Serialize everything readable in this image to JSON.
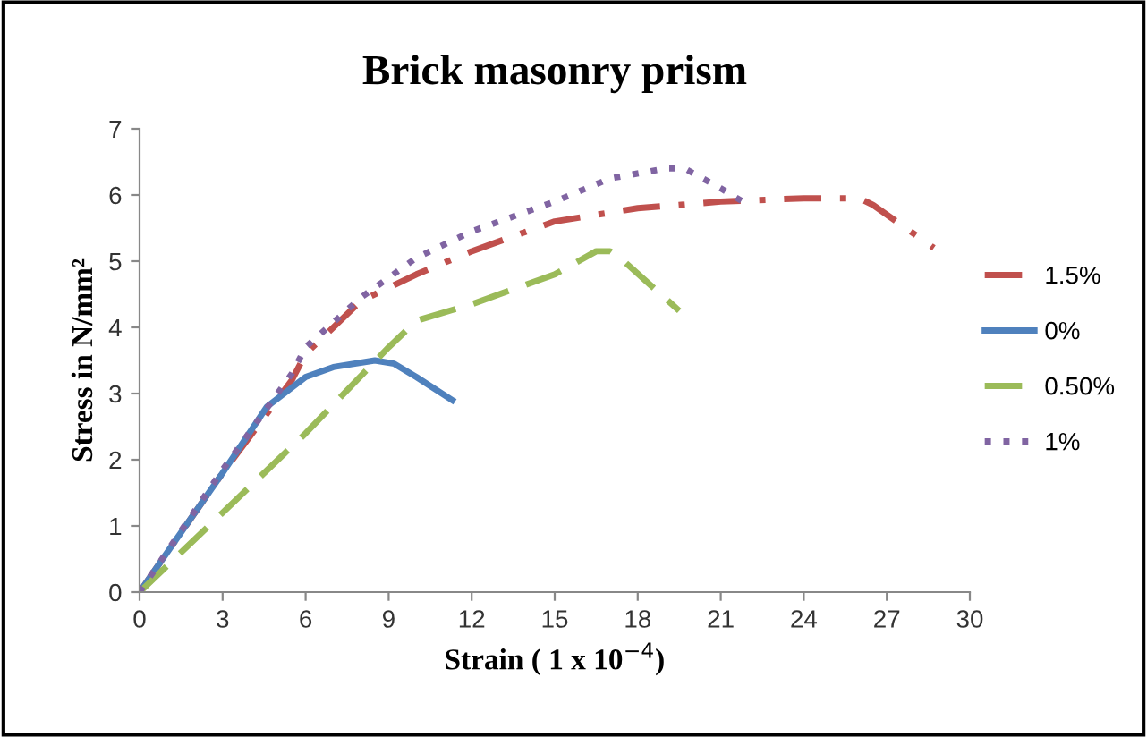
{
  "chart_data": {
    "type": "line",
    "title": "Brick masonry prism",
    "xlabel": "Strain ( 1 x 10$^{−4}$)",
    "ylabel": "Stress in N/mm²",
    "xlim": [
      0,
      30
    ],
    "xticks": [
      0,
      3,
      6,
      9,
      12,
      15,
      18,
      21,
      24,
      27,
      30
    ],
    "ylim": [
      0,
      7
    ],
    "yticks": [
      0,
      1,
      2,
      3,
      4,
      5,
      6,
      7
    ],
    "grid": false,
    "legend": "right",
    "marker": "none",
    "series": [
      {
        "name": "1.5%",
        "color": "#c0504d",
        "line_style": "dashdot",
        "x": [
          0,
          3,
          5.5,
          6,
          8,
          10,
          12,
          15,
          18,
          21,
          24,
          26,
          26.5,
          28.7
        ],
        "values": [
          0,
          1.8,
          3.2,
          3.6,
          4.4,
          4.8,
          5.15,
          5.6,
          5.8,
          5.9,
          5.95,
          5.95,
          5.85,
          5.2
        ]
      },
      {
        "name": "0%",
        "color": "#4f81bd",
        "line_style": "solid",
        "x": [
          0,
          1,
          3,
          4.6,
          6,
          7,
          8.5,
          9.2,
          10,
          11.3
        ],
        "values": [
          0,
          0.6,
          1.8,
          2.8,
          3.25,
          3.4,
          3.5,
          3.45,
          3.25,
          2.9
        ]
      },
      {
        "name": "0.50%",
        "color": "#9bbb59",
        "line_style": "dashed",
        "x": [
          0,
          3,
          6,
          9,
          10,
          12,
          15,
          16.5,
          17,
          17.5,
          19.5
        ],
        "values": [
          0,
          1.2,
          2.4,
          3.7,
          4.1,
          4.35,
          4.8,
          5.15,
          5.15,
          5.0,
          4.25
        ]
      },
      {
        "name": "1%",
        "color": "#8064a2",
        "line_style": "dotted",
        "x": [
          0,
          3,
          5.5,
          6,
          8,
          10,
          12,
          15,
          17,
          19,
          19.7,
          21,
          21.8
        ],
        "values": [
          0,
          1.85,
          3.3,
          3.7,
          4.45,
          5.05,
          5.45,
          5.9,
          6.25,
          6.4,
          6.4,
          6.1,
          5.9
        ]
      }
    ]
  }
}
